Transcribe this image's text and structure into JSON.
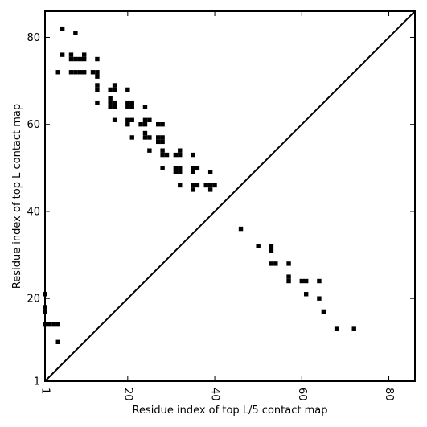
{
  "chart_data": {
    "type": "heatmap",
    "title": "",
    "xlabel": "Residue index of top L/5 contact map",
    "ylabel": "Residue index of top L contact map",
    "xlim": [
      1,
      86
    ],
    "ylim": [
      1,
      86
    ],
    "x_ticks": [
      1,
      20,
      40,
      60,
      80
    ],
    "y_ticks": [
      1,
      20,
      40,
      60,
      80
    ],
    "x_tick_labels": [
      "1",
      "20",
      "40",
      "60",
      "80"
    ],
    "y_tick_labels": [
      "1",
      "20",
      "40",
      "60",
      "80"
    ],
    "diagonal": true,
    "cell_color": "#000000",
    "upper_triangle_contacts": [
      [
        5,
        82
      ],
      [
        8,
        81
      ],
      [
        5,
        76
      ],
      [
        7,
        76
      ],
      [
        10,
        76
      ],
      [
        7,
        75
      ],
      [
        8,
        75
      ],
      [
        9,
        75
      ],
      [
        10,
        75
      ],
      [
        13,
        75
      ],
      [
        4,
        72
      ],
      [
        7,
        72
      ],
      [
        8,
        72
      ],
      [
        9,
        72
      ],
      [
        10,
        72
      ],
      [
        12,
        72
      ],
      [
        13,
        72
      ],
      [
        13,
        71
      ],
      [
        13,
        69
      ],
      [
        13,
        68
      ],
      [
        16,
        68
      ],
      [
        17,
        69
      ],
      [
        17,
        68
      ],
      [
        20,
        68
      ],
      [
        16,
        66
      ],
      [
        16,
        65
      ],
      [
        17,
        65
      ],
      [
        20,
        65
      ],
      [
        21,
        65
      ],
      [
        16,
        64
      ],
      [
        17,
        64
      ],
      [
        20,
        64
      ],
      [
        21,
        64
      ],
      [
        13,
        65
      ],
      [
        24,
        64
      ],
      [
        17,
        61
      ],
      [
        20,
        61
      ],
      [
        21,
        61
      ],
      [
        24,
        61
      ],
      [
        25,
        61
      ],
      [
        20,
        60
      ],
      [
        23,
        60
      ],
      [
        24,
        60
      ],
      [
        27,
        60
      ],
      [
        28,
        60
      ],
      [
        24,
        58
      ],
      [
        21,
        57
      ],
      [
        24,
        57
      ],
      [
        25,
        57
      ],
      [
        27,
        57
      ],
      [
        28,
        57
      ],
      [
        27,
        56
      ],
      [
        28,
        56
      ],
      [
        25,
        54
      ],
      [
        28,
        54
      ],
      [
        32,
        54
      ],
      [
        28,
        53
      ],
      [
        29,
        53
      ],
      [
        31,
        53
      ],
      [
        32,
        53
      ],
      [
        35,
        53
      ],
      [
        28,
        50
      ],
      [
        31,
        50
      ],
      [
        32,
        50
      ],
      [
        35,
        50
      ],
      [
        36,
        50
      ],
      [
        31,
        49
      ],
      [
        32,
        49
      ],
      [
        35,
        49
      ],
      [
        39,
        49
      ],
      [
        32,
        46
      ],
      [
        35,
        46
      ],
      [
        36,
        46
      ],
      [
        38,
        46
      ],
      [
        39,
        46
      ],
      [
        40,
        46
      ],
      [
        35,
        45
      ],
      [
        39,
        45
      ],
      [
        1,
        21
      ],
      [
        1,
        18
      ],
      [
        1,
        17
      ],
      [
        1,
        14
      ],
      [
        2,
        14
      ],
      [
        3,
        14
      ],
      [
        4,
        14
      ],
      [
        4,
        10
      ]
    ],
    "lower_triangle_contacts": [
      [
        46,
        36
      ],
      [
        50,
        32
      ],
      [
        53,
        32
      ],
      [
        53,
        31
      ],
      [
        53,
        28
      ],
      [
        54,
        28
      ],
      [
        57,
        28
      ],
      [
        57,
        25
      ],
      [
        57,
        24
      ],
      [
        60,
        24
      ],
      [
        61,
        24
      ],
      [
        64,
        24
      ],
      [
        61,
        21
      ],
      [
        64,
        20
      ],
      [
        65,
        17
      ],
      [
        68,
        13
      ],
      [
        72,
        13
      ]
    ]
  }
}
